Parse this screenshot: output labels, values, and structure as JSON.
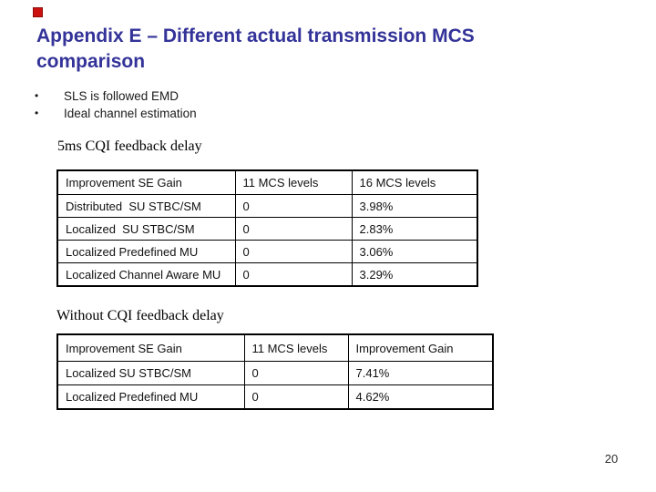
{
  "slide": {
    "title_line1": "Appendix E – Different actual transmission MCS",
    "title_line2": "comparison",
    "title_color": "#333399",
    "marker_color": "#cc1111",
    "bullet_char": "•",
    "bullets": [
      "SLS is followed EMD",
      "Ideal channel estimation"
    ],
    "page_number": "20"
  },
  "section1": {
    "label": "5ms CQI feedback delay",
    "table": {
      "headers": [
        "Improvement SE Gain",
        "11 MCS levels",
        "16 MCS levels"
      ],
      "rows": [
        [
          "Distributed  SU STBC/SM",
          "0",
          "3.98%"
        ],
        [
          "Localized  SU STBC/SM",
          "0",
          "2.83%"
        ],
        [
          "Localized Predefined MU",
          "0",
          "3.06%"
        ],
        [
          "Localized Channel Aware MU",
          "0",
          "3.29%"
        ]
      ]
    }
  },
  "section2": {
    "label": "Without CQI feedback delay",
    "table": {
      "headers": [
        "Improvement SE Gain",
        "11 MCS levels",
        "Improvement Gain"
      ],
      "rows": [
        [
          "Localized SU STBC/SM",
          "0",
          "7.41%"
        ],
        [
          "Localized Predefined MU",
          "0",
          "4.62%"
        ]
      ]
    }
  },
  "chart_data": [
    {
      "type": "table",
      "title": "5ms CQI feedback delay",
      "columns": [
        "Improvement SE Gain",
        "11 MCS levels",
        "16 MCS levels"
      ],
      "rows": [
        [
          "Distributed  SU STBC/SM",
          "0",
          "3.98%"
        ],
        [
          "Localized  SU STBC/SM",
          "0",
          "2.83%"
        ],
        [
          "Localized Predefined MU",
          "0",
          "3.06%"
        ],
        [
          "Localized Channel Aware MU",
          "0",
          "3.29%"
        ]
      ]
    },
    {
      "type": "table",
      "title": "Without CQI feedback delay",
      "columns": [
        "Improvement SE Gain",
        "11 MCS levels",
        "Improvement Gain"
      ],
      "rows": [
        [
          "Localized SU STBC/SM",
          "0",
          "7.41%"
        ],
        [
          "Localized Predefined MU",
          "0",
          "4.62%"
        ]
      ]
    }
  ]
}
